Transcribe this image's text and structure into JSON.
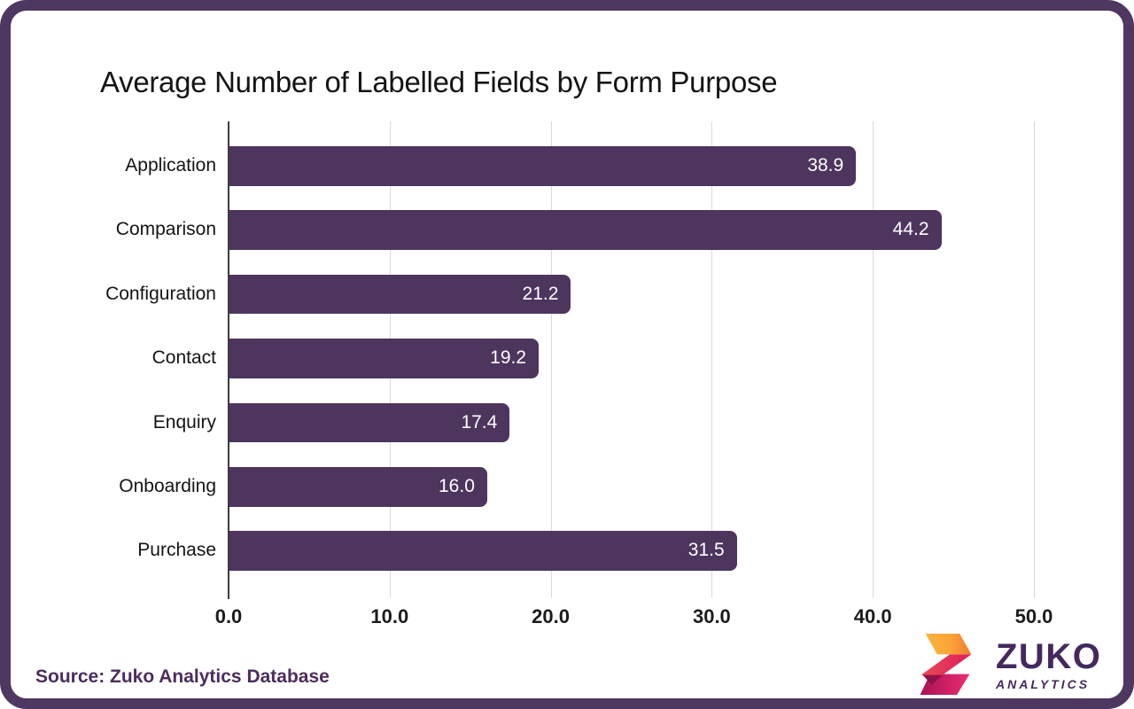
{
  "chart_data": {
    "type": "bar",
    "orientation": "horizontal",
    "title": "Average Number of Labelled Fields by Form Purpose",
    "categories": [
      "Application",
      "Comparison",
      "Configuration",
      "Contact",
      "Enquiry",
      "Onboarding",
      "Purchase"
    ],
    "values": [
      38.9,
      44.2,
      21.2,
      19.2,
      17.4,
      16.0,
      31.5
    ],
    "value_labels": [
      "38.9",
      "44.2",
      "21.2",
      "19.2",
      "17.4",
      "16.0",
      "31.5"
    ],
    "xticks": [
      "0.0",
      "10.0",
      "20.0",
      "30.0",
      "40.0",
      "50.0"
    ],
    "xlim": [
      0,
      50
    ],
    "xlabel": "",
    "ylabel": "",
    "grid": "vertical",
    "legend": "none",
    "bar_color": "#4d355e",
    "value_label_color": "#ffffff"
  },
  "footer": {
    "source": "Source: Zuko Analytics Database",
    "logo": {
      "brand": "ZUKO",
      "tagline": "ANALYTICS"
    }
  },
  "colors": {
    "frame_border": "#4e3760",
    "bar": "#4d355e",
    "gridline": "#d9d9d9",
    "axis": "#3d3d3d",
    "title_text": "#141414",
    "source_text": "#4b2d5e",
    "logo_purple": "#44285e",
    "logo_yellow": "#fbb33b",
    "logo_orange": "#f57a30",
    "logo_red": "#e84a52",
    "logo_crimson": "#df1f5e",
    "logo_magenta_dark": "#a81355",
    "logo_pink": "#ed2b70"
  }
}
